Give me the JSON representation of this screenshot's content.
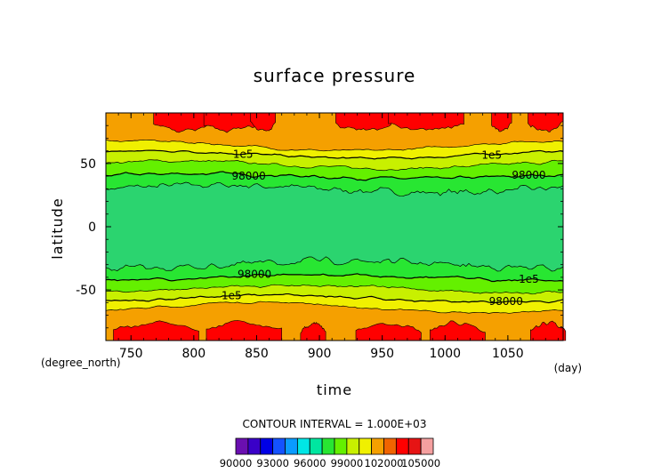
{
  "chart_data": {
    "type": "heatmap",
    "subtype": "filled-contour",
    "title": "surface pressure",
    "xlabel": "time",
    "ylabel": "latitude",
    "x_units": "(day)",
    "y_units": "(degree_north)",
    "xlim": [
      730,
      1094
    ],
    "ylim": [
      -90,
      90
    ],
    "x_ticks": [
      750,
      800,
      850,
      900,
      950,
      1000,
      1050
    ],
    "y_ticks": [
      50,
      0,
      -50
    ],
    "contour_interval_text": "CONTOUR INTERVAL = 1.000E+03",
    "contour_labels": [
      "1e5",
      "98000",
      "1e5",
      "98000",
      "98000",
      "1e5",
      "98000",
      "1e5"
    ],
    "colorbar": {
      "levels": [
        90000,
        91000,
        92000,
        93000,
        94000,
        95000,
        96000,
        97000,
        98000,
        99000,
        100000,
        101000,
        102000,
        103000,
        104000,
        105000,
        106000
      ],
      "tick_labels": [
        "90000",
        "93000",
        "96000",
        "99000",
        "102000",
        "105000"
      ],
      "colors": [
        "#6a0fb0",
        "#3a00c8",
        "#0000e6",
        "#1452ff",
        "#0a9bff",
        "#00e6e6",
        "#00e6a0",
        "#28e632",
        "#64f000",
        "#c8f000",
        "#f0f000",
        "#f5a000",
        "#f06400",
        "#ff0000",
        "#e61414",
        "#f5a0a0"
      ]
    },
    "series": [
      {
        "name": "band_96000_97000",
        "color": "#2bd46f",
        "lat_range": [
          -30,
          30
        ]
      },
      {
        "name": "band_97000_98000",
        "color": "#28e632",
        "lat_range": [
          -42,
          42
        ]
      },
      {
        "name": "band_98000_99000",
        "color": "#64f000",
        "lat_range": [
          -52,
          52
        ]
      },
      {
        "name": "band_99000_100000",
        "color": "#c8f000",
        "lat_range": [
          -60,
          60
        ]
      },
      {
        "name": "band_100000_101000",
        "color": "#f0f000",
        "lat_range": [
          -68,
          68
        ]
      },
      {
        "name": "band_101000_102000",
        "color": "#f5a000",
        "lat_range": [
          -90,
          90
        ]
      },
      {
        "name": "band_102000_105000",
        "color": "#ff0000",
        "lat_range_edge": [
          78,
          90
        ]
      }
    ]
  }
}
